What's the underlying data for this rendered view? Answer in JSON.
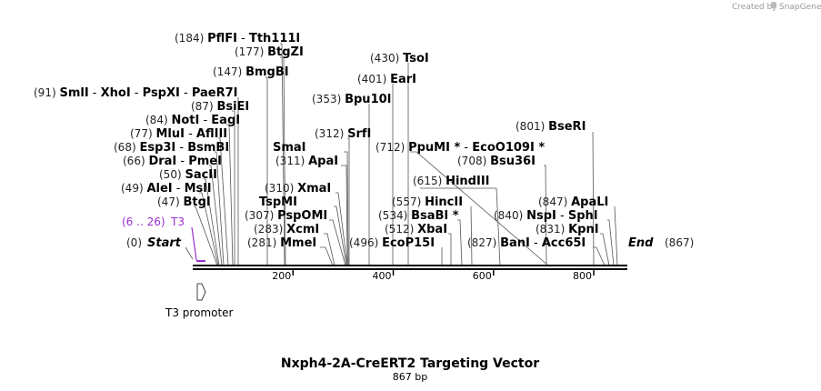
{
  "credit": {
    "prefix": "Created by",
    "brand": "SnapGene"
  },
  "title": "Nxph4-2A-CreERT2 Targeting Vector",
  "subtitle": "867 bp",
  "sequence_length": 867,
  "ticks": [
    {
      "value": 200,
      "label": "200"
    },
    {
      "value": 400,
      "label": "400"
    },
    {
      "value": 600,
      "label": "600"
    },
    {
      "value": 800,
      "label": "800"
    }
  ],
  "start_label": {
    "position": "(0)",
    "text": "Start"
  },
  "end_label": {
    "position": "(867)",
    "text": "End"
  },
  "primer": {
    "label": "T3",
    "range": "(6 .. 26)",
    "color": "#9b30d0"
  },
  "feature": {
    "name": "T3 promoter"
  },
  "site_rows": [
    {
      "pos": "(184)",
      "names": [
        "PflFI",
        "Tth111I"
      ]
    },
    {
      "pos": "(177)",
      "names": [
        "BtgZI"
      ]
    },
    {
      "pos": "(147)",
      "names": [
        "BmgBI"
      ]
    },
    {
      "pos": "(91)",
      "names": [
        "SmlI",
        "XhoI",
        "PspXI",
        "PaeR7I"
      ]
    },
    {
      "pos": "(87)",
      "names": [
        "BsiEI"
      ]
    },
    {
      "pos": "(84)",
      "names": [
        "NotI",
        "EagI"
      ]
    },
    {
      "pos": "(77)",
      "names": [
        "MluI",
        "AflIII"
      ]
    },
    {
      "pos": "(68)",
      "names": [
        "Esp3I",
        "BsmBI"
      ]
    },
    {
      "pos": "(66)",
      "names": [
        "DraI",
        "PmeI"
      ]
    },
    {
      "pos": "(50)",
      "names": [
        "SacII"
      ]
    },
    {
      "pos": "(49)",
      "names": [
        "AleI",
        "MslI"
      ]
    },
    {
      "pos": "(47)",
      "names": [
        "BtgI"
      ]
    },
    {
      "pos": "(430)",
      "names": [
        "TsoI"
      ]
    },
    {
      "pos": "(401)",
      "names": [
        "EarI"
      ]
    },
    {
      "pos": "(353)",
      "names": [
        "Bpu10I"
      ]
    },
    {
      "pos": "(312)",
      "names": [
        "SrfI"
      ]
    },
    {
      "pos": "",
      "names": [
        "SmaI"
      ]
    },
    {
      "pos": "(311)",
      "names": [
        "ApaI"
      ]
    },
    {
      "pos": "(310)",
      "names": [
        "XmaI"
      ]
    },
    {
      "pos": "",
      "names": [
        "TspMI"
      ]
    },
    {
      "pos": "(307)",
      "names": [
        "PspOMI"
      ]
    },
    {
      "pos": "(283)",
      "names": [
        "XcmI"
      ]
    },
    {
      "pos": "(281)",
      "names": [
        "MmeI"
      ]
    },
    {
      "pos": "(712)",
      "names": [
        "PpuMI *",
        "EcoO109I *"
      ]
    },
    {
      "pos": "(615)",
      "names": [
        "HindIII"
      ]
    },
    {
      "pos": "(557)",
      "names": [
        "HincII"
      ]
    },
    {
      "pos": "(534)",
      "names": [
        "BsaBI *"
      ]
    },
    {
      "pos": "(512)",
      "names": [
        "XbaI"
      ]
    },
    {
      "pos": "(496)",
      "names": [
        "EcoP15I"
      ]
    },
    {
      "pos": "(801)",
      "names": [
        "BseRI"
      ]
    },
    {
      "pos": "(708)",
      "names": [
        "Bsu36I"
      ]
    },
    {
      "pos": "(847)",
      "names": [
        "ApaLI"
      ]
    },
    {
      "pos": "(840)",
      "names": [
        "NspI",
        "SphI"
      ]
    },
    {
      "pos": "(831)",
      "names": [
        "KpnI"
      ]
    },
    {
      "pos": "(827)",
      "names": [
        "BanI",
        "Acc65I"
      ]
    }
  ]
}
